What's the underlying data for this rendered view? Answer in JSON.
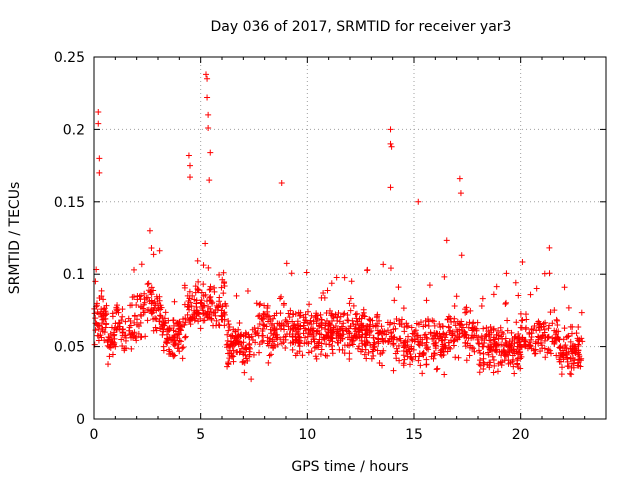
{
  "chart_data": {
    "type": "scatter",
    "title": "Day 036 of 2017, SRMTID for receiver yar3",
    "xlabel": "GPS time / hours",
    "ylabel": "SRMTID / TECUs",
    "xlim": [
      0,
      24
    ],
    "ylim": [
      0,
      0.25
    ],
    "x_ticks": [
      0,
      5,
      10,
      15,
      20
    ],
    "x_tick_labels": [
      "0",
      "5",
      "10",
      "15",
      "20"
    ],
    "y_ticks": [
      0,
      0.05,
      0.1,
      0.15,
      0.2,
      0.25
    ],
    "y_tick_labels": [
      "0",
      "0.05",
      "0.1",
      "0.15",
      "0.2",
      "0.25"
    ],
    "grid": true,
    "marker": "+",
    "marker_color": "#ff0000",
    "x_range_of_data": [
      0,
      22.9
    ],
    "typical_y_range": [
      0.02,
      0.1
    ],
    "notable_peaks": [
      {
        "x": 0.2,
        "y": 0.212
      },
      {
        "x": 0.2,
        "y": 0.204
      },
      {
        "x": 0.25,
        "y": 0.18
      },
      {
        "x": 0.25,
        "y": 0.17
      },
      {
        "x": 4.45,
        "y": 0.182
      },
      {
        "x": 4.5,
        "y": 0.175
      },
      {
        "x": 4.5,
        "y": 0.167
      },
      {
        "x": 5.25,
        "y": 0.238
      },
      {
        "x": 5.3,
        "y": 0.235
      },
      {
        "x": 5.3,
        "y": 0.222
      },
      {
        "x": 5.35,
        "y": 0.21
      },
      {
        "x": 5.35,
        "y": 0.201
      },
      {
        "x": 5.45,
        "y": 0.184
      },
      {
        "x": 5.4,
        "y": 0.165
      },
      {
        "x": 8.8,
        "y": 0.163
      },
      {
        "x": 13.9,
        "y": 0.2
      },
      {
        "x": 13.9,
        "y": 0.19
      },
      {
        "x": 13.95,
        "y": 0.188
      },
      {
        "x": 13.9,
        "y": 0.16
      },
      {
        "x": 17.15,
        "y": 0.166
      },
      {
        "x": 17.2,
        "y": 0.156
      },
      {
        "x": 15.2,
        "y": 0.15
      }
    ]
  }
}
